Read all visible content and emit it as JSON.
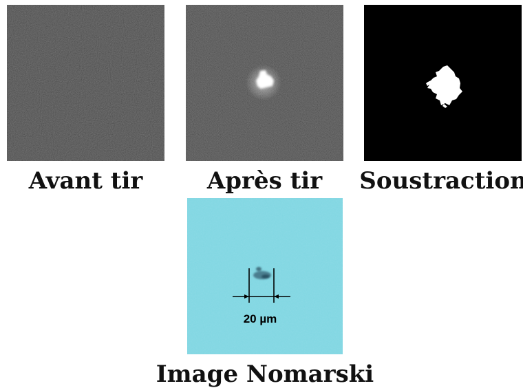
{
  "panels": {
    "before": {
      "caption": "Avant tir"
    },
    "after": {
      "caption": "Après tir"
    },
    "subtraction": {
      "caption": "Soustraction"
    },
    "nomarski": {
      "caption": "Image Nomarski",
      "scale_bar_label": "20 µm"
    }
  },
  "colors": {
    "noise_bg": "#3b3b3b",
    "subtraction_bg": "#000000",
    "nomarski_bg": "#7fd6e2",
    "spot": "#ffffff"
  }
}
